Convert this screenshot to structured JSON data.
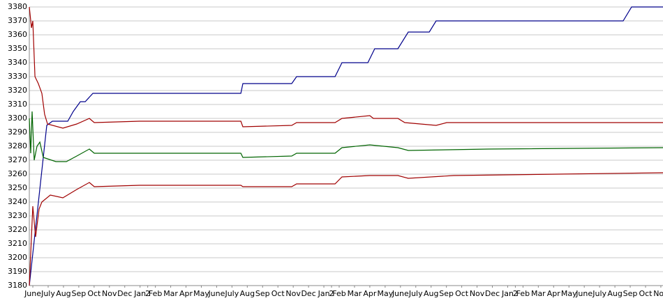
{
  "chart_data": {
    "type": "line",
    "xlim": [
      -0.23,
      41.14
    ],
    "xticks": [
      {
        "value": 0,
        "label": "June"
      },
      {
        "value": 1,
        "label": "July"
      },
      {
        "value": 2,
        "label": "Aug"
      },
      {
        "value": 3,
        "label": "Sep"
      },
      {
        "value": 4,
        "label": "Oct"
      },
      {
        "value": 5,
        "label": "Nov"
      },
      {
        "value": 6,
        "label": "Dec"
      },
      {
        "value": 7,
        "label": "Jan"
      },
      {
        "value": 7.5,
        "label": "2"
      },
      {
        "value": 8,
        "label": "Feb"
      },
      {
        "value": 9,
        "label": "Mar"
      },
      {
        "value": 10,
        "label": "Apr"
      },
      {
        "value": 11,
        "label": "May"
      },
      {
        "value": 12,
        "label": "June"
      },
      {
        "value": 13,
        "label": "July"
      },
      {
        "value": 14,
        "label": "Aug"
      },
      {
        "value": 15,
        "label": "Sep"
      },
      {
        "value": 16,
        "label": "Oct"
      },
      {
        "value": 17,
        "label": "Nov"
      },
      {
        "value": 18,
        "label": "Dec"
      },
      {
        "value": 19,
        "label": "Jan"
      },
      {
        "value": 19.5,
        "label": "2"
      },
      {
        "value": 20,
        "label": "Feb"
      },
      {
        "value": 21,
        "label": "Mar"
      },
      {
        "value": 22,
        "label": "Apr"
      },
      {
        "value": 23,
        "label": "May"
      },
      {
        "value": 24,
        "label": "June"
      },
      {
        "value": 25,
        "label": "July"
      },
      {
        "value": 26,
        "label": "Aug"
      },
      {
        "value": 27,
        "label": "Sep"
      },
      {
        "value": 28,
        "label": "Oct"
      },
      {
        "value": 29,
        "label": "Nov"
      },
      {
        "value": 30,
        "label": "Dec"
      },
      {
        "value": 31,
        "label": "Jan"
      },
      {
        "value": 31.5,
        "label": "2"
      },
      {
        "value": 32,
        "label": "Feb"
      },
      {
        "value": 33,
        "label": "Mar"
      },
      {
        "value": 34,
        "label": "Apr"
      },
      {
        "value": 35,
        "label": "May"
      },
      {
        "value": 36,
        "label": "June"
      },
      {
        "value": 37,
        "label": "July"
      },
      {
        "value": 38,
        "label": "Aug"
      },
      {
        "value": 39,
        "label": "Sep"
      },
      {
        "value": 40,
        "label": "Oct"
      },
      {
        "value": 41,
        "label": "Nov"
      }
    ],
    "ylim": [
      3180,
      3380
    ],
    "yticks": [
      3180,
      3190,
      3200,
      3210,
      3220,
      3230,
      3240,
      3250,
      3260,
      3270,
      3280,
      3290,
      3300,
      3310,
      3320,
      3330,
      3340,
      3350,
      3360,
      3370,
      3380
    ],
    "grid": true,
    "series": [
      {
        "color": "#00008b",
        "x": [
          -0.23,
          0.91,
          1.28,
          2.28,
          2.64,
          3.1,
          3.42,
          3.92,
          13.58,
          13.71,
          16.9,
          17.22,
          19.73,
          20.18,
          21.87,
          22.32,
          23.83,
          24.51,
          25.88,
          26.33,
          38.54,
          39.09,
          41.14
        ],
        "values": [
          3180,
          3295,
          3298,
          3298,
          3305,
          3312,
          3312,
          3318,
          3318,
          3325,
          3325,
          3330,
          3330,
          3340,
          3340,
          3350,
          3350,
          3362,
          3362,
          3370,
          3370,
          3380,
          3380
        ]
      },
      {
        "color": "#a00000",
        "x": [
          -0.23,
          -0.09,
          0,
          0.14,
          0.36,
          0.59,
          0.77,
          0.96,
          1.96,
          2.87,
          3.69,
          4.01,
          6.97,
          13.58,
          13.71,
          16.9,
          17.22,
          19.73,
          20.18,
          22,
          22.23,
          23.83,
          24.28,
          26.33,
          27.02,
          41.14
        ],
        "values": [
          3380,
          3365,
          3370,
          3330,
          3325,
          3318,
          3303,
          3296,
          3293,
          3296,
          3300,
          3297,
          3298,
          3298,
          3294,
          3295,
          3297,
          3297,
          3300,
          3302,
          3300,
          3300,
          3297,
          3295,
          3297,
          3297
        ]
      },
      {
        "color": "#006400",
        "x": [
          -0.23,
          -0.14,
          -0.05,
          0.09,
          0.27,
          0.46,
          0.68,
          1.5,
          2.19,
          2.87,
          3.69,
          4.01,
          13.58,
          13.71,
          16.9,
          17.22,
          19.73,
          20.18,
          22,
          23.83,
          24.51,
          29.75,
          41.14
        ],
        "values": [
          3300,
          3275,
          3305,
          3270,
          3280,
          3283,
          3272,
          3269,
          3269,
          3273,
          3278,
          3275,
          3275,
          3272,
          3273,
          3275,
          3275,
          3279,
          3281,
          3279,
          3277,
          3278,
          3279
        ]
      },
      {
        "color": "#a00000",
        "x": [
          -0.23,
          0,
          0.18,
          0.41,
          0.59,
          1.14,
          1.96,
          2.87,
          3.69,
          4.01,
          6.97,
          13.58,
          13.71,
          16.9,
          17.22,
          19.73,
          20.18,
          22,
          23.83,
          24.51,
          27.47,
          34.3,
          41.14
        ],
        "values": [
          3180,
          3237,
          3215,
          3235,
          3240,
          3245,
          3243,
          3249,
          3254,
          3251,
          3252,
          3252,
          3251,
          3251,
          3253,
          3253,
          3258,
          3259,
          3259,
          3257,
          3259,
          3260,
          3261
        ]
      }
    ]
  }
}
